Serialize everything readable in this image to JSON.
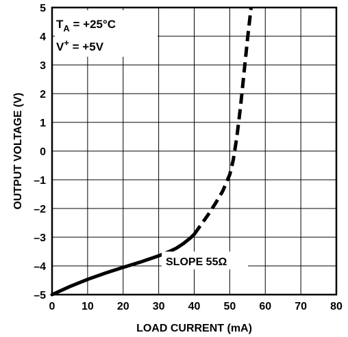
{
  "chart_data": {
    "type": "line",
    "title_visible": "",
    "xlabel": "LOAD CURRENT (mA)",
    "ylabel": "OUTPUT VOLTAGE (V)",
    "xlim": [
      0,
      80
    ],
    "ylim": [
      -5,
      5
    ],
    "x_ticks": [
      "0",
      "10",
      "20",
      "30",
      "40",
      "50",
      "60",
      "70",
      "80"
    ],
    "y_ticks": [
      "5",
      "4",
      "3",
      "2",
      "1",
      "0",
      "–1",
      "–2",
      "–3",
      "–4",
      "–5"
    ],
    "grid": true,
    "legend": {
      "ta_line": {
        "prefix": "T",
        "sub": "A",
        "value": " = +25°C"
      },
      "v_line": {
        "prefix": "V",
        "sup": "+",
        "value": " = +5V"
      }
    },
    "annotation": "SLOPE 55Ω",
    "series": [
      {
        "style": "solid",
        "x": [
          0,
          5,
          10,
          15,
          20,
          25,
          30,
          33,
          35,
          37,
          39,
          40
        ],
        "y": [
          -5.0,
          -4.72,
          -4.47,
          -4.25,
          -4.05,
          -3.86,
          -3.65,
          -3.5,
          -3.38,
          -3.22,
          -3.02,
          -2.9
        ]
      },
      {
        "style": "dashed",
        "x": [
          40,
          42,
          44,
          46,
          48,
          50,
          51,
          52,
          53,
          54,
          55,
          56
        ],
        "y": [
          -2.9,
          -2.55,
          -2.2,
          -1.82,
          -1.4,
          -0.82,
          -0.3,
          0.5,
          1.5,
          2.7,
          3.9,
          5.0
        ]
      }
    ]
  }
}
